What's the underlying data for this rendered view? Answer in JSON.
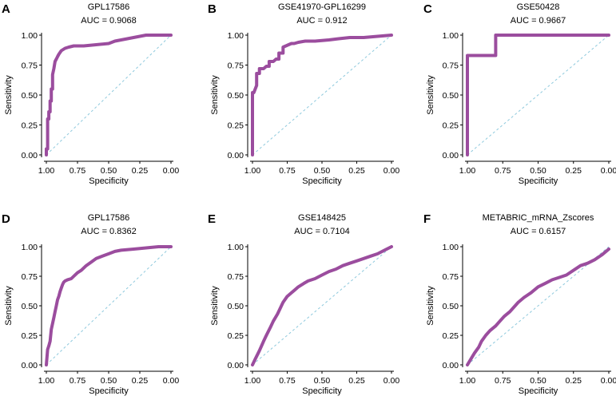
{
  "chart_data": [
    {
      "type": "line",
      "letter": "A",
      "dataset": "GPL17586",
      "auc_text": "AUC = 0.9068",
      "xlabel": "Specificity",
      "ylabel": "Sensitivity",
      "xlim": [
        1.0,
        0.0
      ],
      "ylim": [
        0.0,
        1.0
      ],
      "xticks": [
        "1.00",
        "0.75",
        "0.50",
        "0.25",
        "0.00"
      ],
      "yticks": [
        "0.00",
        "0.25",
        "0.50",
        "0.75",
        "1.00"
      ],
      "series": [
        {
          "name": "ROC",
          "color": "#9b4d9e",
          "x": [
            1.0,
            1.0,
            0.99,
            0.99,
            0.98,
            0.98,
            0.97,
            0.97,
            0.96,
            0.96,
            0.95,
            0.95,
            0.94,
            0.93,
            0.92,
            0.91,
            0.9,
            0.88,
            0.85,
            0.82,
            0.78,
            0.7,
            0.6,
            0.5,
            0.45,
            0.4,
            0.35,
            0.3,
            0.25,
            0.2,
            0.1,
            0.0
          ],
          "y": [
            0.0,
            0.05,
            0.05,
            0.3,
            0.3,
            0.36,
            0.36,
            0.45,
            0.45,
            0.55,
            0.55,
            0.67,
            0.72,
            0.78,
            0.8,
            0.82,
            0.84,
            0.87,
            0.89,
            0.9,
            0.91,
            0.91,
            0.92,
            0.93,
            0.95,
            0.96,
            0.97,
            0.98,
            0.99,
            1.0,
            1.0,
            1.0
          ]
        }
      ]
    },
    {
      "type": "line",
      "letter": "B",
      "dataset": "GSE41970-GPL16299",
      "auc_text": "AUC = 0.912",
      "xlabel": "Specificity",
      "ylabel": "Sensitivity",
      "xlim": [
        1.0,
        0.0
      ],
      "ylim": [
        0.0,
        1.0
      ],
      "xticks": [
        "1.00",
        "0.75",
        "0.50",
        "0.25",
        "0.00"
      ],
      "yticks": [
        "0.00",
        "0.25",
        "0.50",
        "0.75",
        "1.00"
      ],
      "series": [
        {
          "name": "ROC",
          "color": "#9b4d9e",
          "x": [
            1.0,
            1.0,
            0.99,
            0.97,
            0.97,
            0.95,
            0.95,
            0.92,
            0.9,
            0.88,
            0.88,
            0.85,
            0.83,
            0.81,
            0.81,
            0.78,
            0.78,
            0.76,
            0.74,
            0.72,
            0.7,
            0.67,
            0.62,
            0.55,
            0.45,
            0.38,
            0.3,
            0.2,
            0.1,
            0.0
          ],
          "y": [
            0.0,
            0.52,
            0.52,
            0.58,
            0.68,
            0.68,
            0.72,
            0.72,
            0.74,
            0.74,
            0.78,
            0.78,
            0.8,
            0.8,
            0.85,
            0.85,
            0.9,
            0.91,
            0.92,
            0.93,
            0.93,
            0.94,
            0.95,
            0.95,
            0.96,
            0.97,
            0.98,
            0.98,
            0.99,
            1.0
          ]
        }
      ]
    },
    {
      "type": "line",
      "letter": "C",
      "dataset": "GSE50428",
      "auc_text": "AUC = 0.9667",
      "xlabel": "Specificity",
      "ylabel": "Sensitivity",
      "xlim": [
        1.0,
        0.0
      ],
      "ylim": [
        0.0,
        1.0
      ],
      "xticks": [
        "1.00",
        "0.75",
        "0.50",
        "0.25",
        "0.00"
      ],
      "yticks": [
        "0.00",
        "0.25",
        "0.50",
        "0.75",
        "1.00"
      ],
      "series": [
        {
          "name": "ROC",
          "color": "#9b4d9e",
          "x": [
            1.0,
            1.0,
            0.8,
            0.8,
            0.0
          ],
          "y": [
            0.0,
            0.83,
            0.83,
            1.0,
            1.0
          ]
        }
      ]
    },
    {
      "type": "line",
      "letter": "D",
      "dataset": "GPL17586",
      "auc_text": "AUC = 0.8362",
      "xlabel": "Specificity",
      "ylabel": "Sensitivity",
      "xlim": [
        1.0,
        0.0
      ],
      "ylim": [
        0.0,
        1.0
      ],
      "xticks": [
        "1.00",
        "0.75",
        "0.50",
        "0.25",
        "0.00"
      ],
      "yticks": [
        "0.00",
        "0.25",
        "0.50",
        "0.75",
        "1.00"
      ],
      "series": [
        {
          "name": "ROC",
          "color": "#9b4d9e",
          "x": [
            1.0,
            0.99,
            0.98,
            0.97,
            0.96,
            0.95,
            0.94,
            0.93,
            0.92,
            0.91,
            0.9,
            0.89,
            0.88,
            0.87,
            0.86,
            0.85,
            0.83,
            0.8,
            0.78,
            0.75,
            0.72,
            0.68,
            0.64,
            0.6,
            0.55,
            0.5,
            0.45,
            0.4,
            0.3,
            0.2,
            0.1,
            0.0
          ],
          "y": [
            0.0,
            0.13,
            0.16,
            0.2,
            0.3,
            0.35,
            0.4,
            0.45,
            0.5,
            0.55,
            0.58,
            0.62,
            0.65,
            0.68,
            0.7,
            0.71,
            0.72,
            0.73,
            0.75,
            0.78,
            0.8,
            0.84,
            0.87,
            0.9,
            0.92,
            0.94,
            0.96,
            0.97,
            0.98,
            0.99,
            1.0,
            1.0
          ]
        }
      ]
    },
    {
      "type": "line",
      "letter": "E",
      "dataset": "GSE148425",
      "auc_text": "AUC = 0.7104",
      "xlabel": "Specificity",
      "ylabel": "Sensitivity",
      "xlim": [
        1.0,
        0.0
      ],
      "ylim": [
        0.0,
        1.0
      ],
      "xticks": [
        "1.00",
        "0.75",
        "0.50",
        "0.25",
        "0.00"
      ],
      "yticks": [
        "0.00",
        "0.25",
        "0.50",
        "0.75",
        "1.00"
      ],
      "series": [
        {
          "name": "ROC",
          "color": "#9b4d9e",
          "x": [
            1.0,
            0.98,
            0.95,
            0.92,
            0.9,
            0.87,
            0.85,
            0.82,
            0.8,
            0.78,
            0.75,
            0.72,
            0.7,
            0.67,
            0.63,
            0.6,
            0.55,
            0.5,
            0.45,
            0.4,
            0.35,
            0.3,
            0.25,
            0.2,
            0.15,
            0.1,
            0.05,
            0.0
          ],
          "y": [
            0.0,
            0.05,
            0.12,
            0.2,
            0.25,
            0.32,
            0.37,
            0.43,
            0.48,
            0.53,
            0.58,
            0.61,
            0.63,
            0.66,
            0.69,
            0.71,
            0.73,
            0.76,
            0.79,
            0.81,
            0.84,
            0.86,
            0.88,
            0.9,
            0.92,
            0.94,
            0.97,
            1.0
          ]
        }
      ]
    },
    {
      "type": "line",
      "letter": "F",
      "dataset": "METABRIC_mRNA_Zscores",
      "auc_text": "AUC = 0.6157",
      "xlabel": "Specificity",
      "ylabel": "Sensitivity",
      "xlim": [
        1.0,
        0.0
      ],
      "ylim": [
        0.0,
        1.0
      ],
      "xticks": [
        "1.00",
        "0.75",
        "0.50",
        "0.25",
        "0.00"
      ],
      "yticks": [
        "0.00",
        "0.25",
        "0.50",
        "0.75",
        "1.00"
      ],
      "series": [
        {
          "name": "ROC",
          "color": "#9b4d9e",
          "x": [
            1.0,
            0.98,
            0.95,
            0.92,
            0.9,
            0.87,
            0.84,
            0.8,
            0.77,
            0.74,
            0.7,
            0.67,
            0.64,
            0.6,
            0.55,
            0.5,
            0.45,
            0.4,
            0.35,
            0.3,
            0.25,
            0.2,
            0.15,
            0.1,
            0.05,
            0.0
          ],
          "y": [
            0.0,
            0.04,
            0.1,
            0.15,
            0.2,
            0.25,
            0.29,
            0.33,
            0.37,
            0.41,
            0.45,
            0.49,
            0.53,
            0.57,
            0.61,
            0.66,
            0.69,
            0.72,
            0.74,
            0.76,
            0.8,
            0.84,
            0.86,
            0.89,
            0.93,
            0.98
          ]
        }
      ]
    }
  ]
}
